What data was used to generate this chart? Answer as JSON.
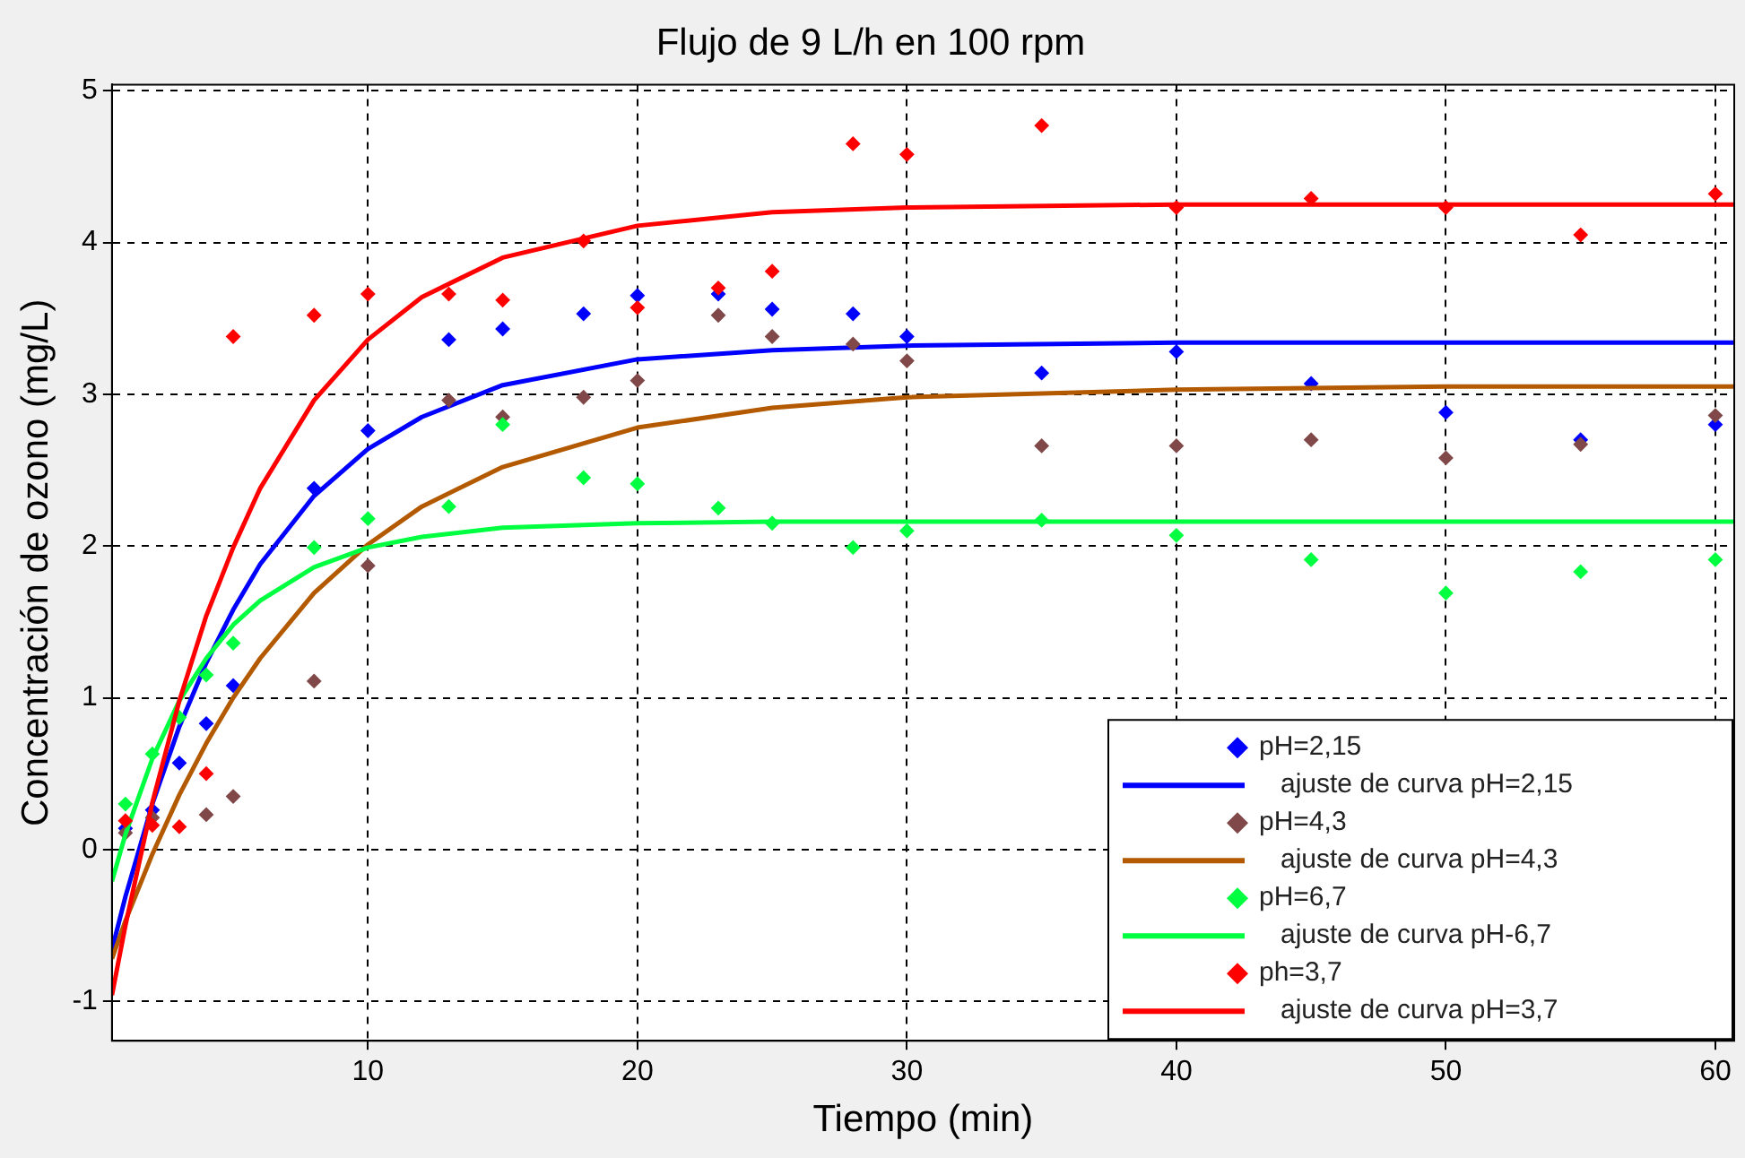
{
  "chart_data": {
    "type": "scatter",
    "title": "Flujo de 9 L/h en 100 rpm",
    "xlabel": "Tiempo (min)",
    "ylabel": "Concentración de ozono (mg/L)",
    "x": [
      1,
      2,
      3,
      4,
      5,
      8,
      10,
      13,
      15,
      18,
      20,
      23,
      25,
      28,
      30,
      35,
      40,
      45,
      50,
      55,
      60
    ],
    "xlim": [
      0.5,
      60.7
    ],
    "xticks": [
      10,
      20,
      30,
      40,
      50,
      60
    ],
    "ylim": [
      -1.26,
      5.04
    ],
    "yticks": [
      -1,
      0,
      1,
      2,
      3,
      4,
      5
    ],
    "grid": true,
    "legend": "bottom right",
    "marker": "diamond",
    "series": [
      {
        "name": "pH=2,15",
        "color": "#0000ff",
        "values": [
          0.14,
          0.26,
          0.57,
          0.83,
          1.08,
          2.38,
          2.76,
          3.36,
          3.43,
          3.53,
          3.65,
          3.66,
          3.56,
          3.53,
          3.38,
          3.14,
          3.28,
          3.07,
          2.88,
          2.7,
          2.8
        ]
      },
      {
        "name": "ajuste de curva pH=2,15",
        "type": "line",
        "color": "#0000ff",
        "marker": "none",
        "x": [
          0.5,
          1,
          2,
          3,
          4,
          5,
          6,
          8,
          10,
          12,
          15,
          20,
          25,
          30,
          40,
          50,
          60.7
        ],
        "values": [
          -0.66,
          -0.31,
          0.3,
          0.81,
          1.23,
          1.58,
          1.88,
          2.33,
          2.64,
          2.85,
          3.06,
          3.23,
          3.29,
          3.32,
          3.34,
          3.34,
          3.34
        ]
      },
      {
        "name": "pH=4,3",
        "color": "#804848",
        "values": [
          0.11,
          0.21,
          null,
          0.23,
          0.35,
          1.11,
          1.87,
          2.96,
          2.85,
          2.98,
          3.09,
          3.52,
          3.38,
          3.33,
          3.22,
          2.66,
          2.66,
          2.7,
          2.58,
          2.67,
          2.86
        ]
      },
      {
        "name": "ajuste de curva pH=4,3",
        "type": "line",
        "color": "#b35900",
        "marker": "none",
        "x": [
          0.5,
          1,
          2,
          3,
          4,
          5,
          6,
          8,
          10,
          12,
          15,
          20,
          25,
          30,
          40,
          50,
          60.7
        ],
        "values": [
          -0.72,
          -0.47,
          -0.03,
          0.36,
          0.7,
          1.0,
          1.26,
          1.69,
          2.01,
          2.26,
          2.52,
          2.78,
          2.91,
          2.98,
          3.03,
          3.05,
          3.05
        ]
      },
      {
        "name": "pH=6,7",
        "color": "#00ff40",
        "values": [
          0.3,
          0.63,
          0.87,
          1.15,
          1.36,
          1.99,
          2.18,
          2.26,
          2.8,
          2.45,
          2.41,
          2.25,
          2.15,
          1.99,
          2.1,
          2.17,
          2.07,
          1.91,
          1.69,
          1.83,
          1.91
        ]
      },
      {
        "name": "ajuste de curva pH-6,7",
        "type": "line",
        "color": "#00ff40",
        "marker": "none",
        "x": [
          0.5,
          1,
          2,
          3,
          4,
          5,
          6,
          8,
          10,
          12,
          15,
          20,
          25,
          30,
          40,
          50,
          60.7
        ],
        "values": [
          -0.21,
          0.1,
          0.6,
          0.98,
          1.26,
          1.48,
          1.64,
          1.86,
          1.99,
          2.06,
          2.12,
          2.15,
          2.16,
          2.16,
          2.16,
          2.16,
          2.16
        ]
      },
      {
        "name": "ph=3,7",
        "color": "#ff0000",
        "values": [
          0.19,
          0.16,
          0.15,
          0.5,
          3.38,
          3.52,
          3.66,
          3.66,
          3.62,
          4.01,
          3.57,
          3.7,
          3.81,
          4.65,
          4.58,
          4.77,
          4.23,
          4.29,
          4.23,
          4.05,
          4.32
        ]
      },
      {
        "name": "ajuste de curva pH=3,7",
        "type": "line",
        "color": "#ff0000",
        "marker": "none",
        "x": [
          0.5,
          1,
          2,
          3,
          4,
          5,
          6,
          8,
          10,
          12,
          15,
          20,
          25,
          30,
          40,
          50,
          60.7
        ],
        "values": [
          -0.96,
          -0.5,
          0.31,
          0.98,
          1.54,
          1.99,
          2.38,
          2.96,
          3.36,
          3.64,
          3.9,
          4.11,
          4.2,
          4.23,
          4.25,
          4.25,
          4.25
        ]
      }
    ]
  }
}
